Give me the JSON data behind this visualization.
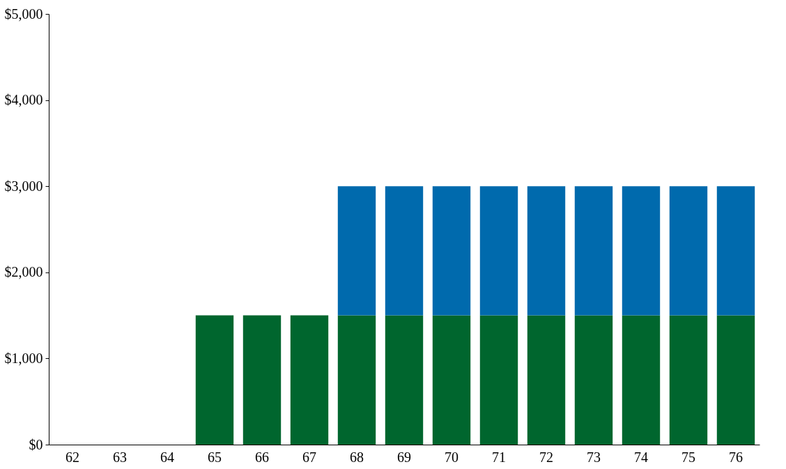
{
  "chart_data": {
    "type": "bar",
    "stacked": true,
    "categories": [
      "62",
      "63",
      "64",
      "65",
      "66",
      "67",
      "68",
      "69",
      "70",
      "71",
      "72",
      "73",
      "74",
      "75",
      "76"
    ],
    "series": [
      {
        "color": "#00662e",
        "values": [
          0,
          0,
          0,
          1500,
          1500,
          1500,
          1500,
          1500,
          1500,
          1500,
          1500,
          1500,
          1500,
          1500,
          1500
        ]
      },
      {
        "color": "#006aad",
        "values": [
          0,
          0,
          0,
          0,
          0,
          0,
          1500,
          1500,
          1500,
          1500,
          1500,
          1500,
          1500,
          1500,
          1500
        ]
      }
    ],
    "ylim": [
      0,
      5000
    ],
    "yticks": [
      {
        "value": 0,
        "label": "$0"
      },
      {
        "value": 1000,
        "label": "$1,000"
      },
      {
        "value": 2000,
        "label": "$2,000"
      },
      {
        "value": 3000,
        "label": "$3,000"
      },
      {
        "value": 4000,
        "label": "$4,000"
      },
      {
        "value": 5000,
        "label": "$5,000"
      }
    ],
    "grid": false,
    "legend": false
  }
}
